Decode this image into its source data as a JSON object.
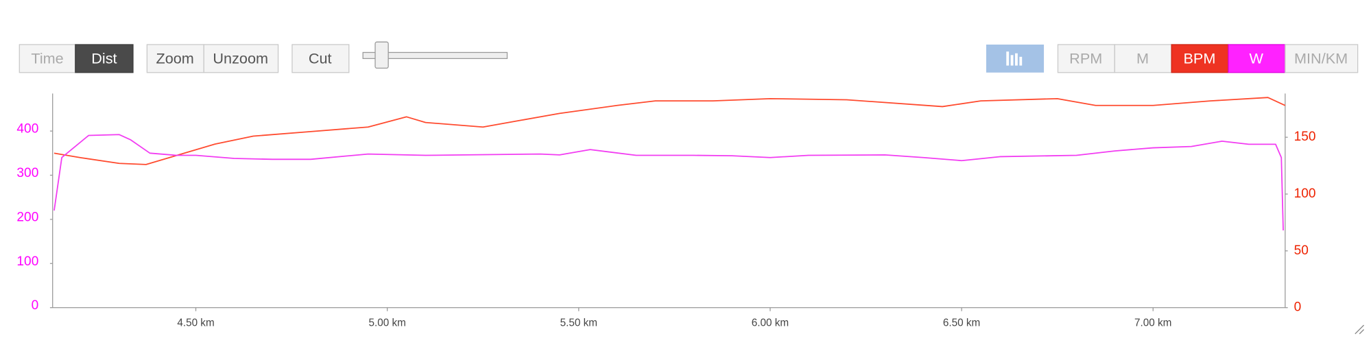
{
  "toolbar": {
    "time": "Time",
    "dist": "Dist",
    "zoom": "Zoom",
    "unzoom": "Unzoom",
    "cut": "Cut",
    "rpm": "RPM",
    "m": "M",
    "min_km": "MIN/KM"
  },
  "chart_data": {
    "type": "line",
    "xlim": [
      4.126,
      7.345
    ],
    "xticks": [
      {
        "value": 4.5,
        "label": "4.50 km"
      },
      {
        "value": 5.0,
        "label": "5.00 km"
      },
      {
        "value": 5.5,
        "label": "5.50 km"
      },
      {
        "value": 6.0,
        "label": "6.00 km"
      },
      {
        "value": 6.5,
        "label": "6.50 km"
      },
      {
        "value": 7.0,
        "label": "7.00 km"
      }
    ],
    "ylim": [
      0,
      485
    ],
    "yticks": [
      0,
      100,
      200,
      300,
      400
    ],
    "ycolor": "#ff00ff",
    "y2lim": [
      0,
      188.5
    ],
    "y2ticks": [
      0,
      50,
      100,
      150
    ],
    "y2color": "#ee2200",
    "series": [
      {
        "name": "BPM",
        "color": "#ff4a2e",
        "axis": "y2",
        "x": [
          4.13,
          4.2,
          4.3,
          4.37,
          4.45,
          4.55,
          4.65,
          4.8,
          4.95,
          5.05,
          5.1,
          5.25,
          5.35,
          5.45,
          5.6,
          5.7,
          5.85,
          6.0,
          6.2,
          6.45,
          6.55,
          6.75,
          6.85,
          7.0,
          7.15,
          7.3,
          7.345
        ],
        "values": [
          136,
          132,
          127,
          126,
          134,
          144,
          151,
          155,
          159,
          168,
          163,
          159,
          165,
          171,
          178,
          182,
          182,
          184,
          183,
          177,
          182,
          184,
          178,
          178,
          182,
          185,
          178
        ]
      },
      {
        "name": "W",
        "color": "#f23cf2",
        "axis": "y",
        "x": [
          4.13,
          4.15,
          4.22,
          4.3,
          4.33,
          4.38,
          4.45,
          4.5,
          4.6,
          4.7,
          4.8,
          4.95,
          5.1,
          5.2,
          5.4,
          5.45,
          5.53,
          5.65,
          5.8,
          5.9,
          6.0,
          6.1,
          6.3,
          6.4,
          6.5,
          6.6,
          6.8,
          6.9,
          7.0,
          7.1,
          7.18,
          7.25,
          7.32,
          7.335,
          7.34
        ],
        "values": [
          220,
          340,
          390,
          392,
          380,
          350,
          345,
          345,
          338,
          336,
          336,
          348,
          345,
          346,
          348,
          346,
          358,
          345,
          345,
          344,
          340,
          345,
          346,
          340,
          333,
          342,
          345,
          355,
          362,
          365,
          377,
          370,
          370,
          340,
          175
        ]
      }
    ]
  }
}
